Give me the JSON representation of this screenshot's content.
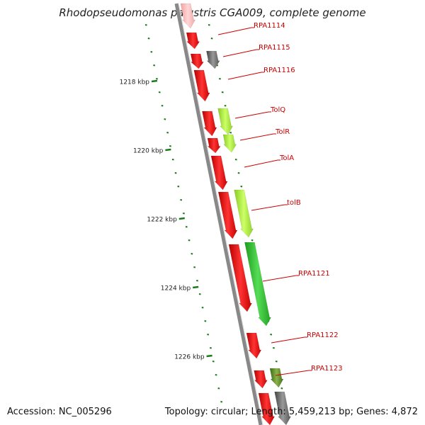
{
  "title": "Rhodopseudomonas palustris CGA009, complete genome",
  "footer": {
    "accession": "Accession: NC_005296",
    "stats": "Topology: circular; Length: 5,459,213 bp; Genes: 4,872"
  },
  "colors": {
    "backbone": "#888888",
    "gene_red": "#ee1111",
    "gene_lime": "#aaee33",
    "gene_green": "#33cc33",
    "gene_gray": "#666666",
    "gene_olive": "#558822",
    "label": "#cc0000",
    "tick": "#1a7a1a"
  },
  "scale_labels": [
    "1218 kbp",
    "1220 kbp",
    "1222 kbp",
    "1224 kbp",
    "1226 kbp"
  ],
  "genes": [
    {
      "label": "RPA1114",
      "color": "gene_red"
    },
    {
      "label": "RPA1115",
      "color": "gene_red"
    },
    {
      "label": "RPA1116",
      "color": "gene_red"
    },
    {
      "label": "TolQ",
      "color": "gene_red"
    },
    {
      "label": "TolR",
      "color": "gene_red"
    },
    {
      "label": "TolA",
      "color": "gene_red"
    },
    {
      "label": "tolB",
      "color": "gene_red"
    },
    {
      "label": "RPA1121",
      "color": "gene_red"
    },
    {
      "label": "RPA1122",
      "color": "gene_red"
    },
    {
      "label": "RPA1123",
      "color": "gene_red"
    }
  ]
}
